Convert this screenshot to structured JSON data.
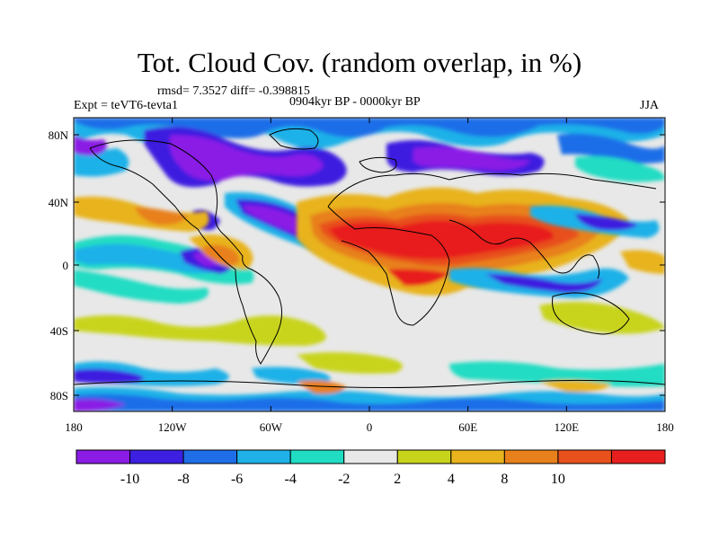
{
  "title": "Tot. Cloud Cov. (random overlap, in %)",
  "stats": "rmsd= 7.3527 diff= -0.398815",
  "experiment": "Expt = teVT6-tevta1",
  "period": "0904kyr BP - 0000kyr BP",
  "season": "JJA",
  "x_ticks": [
    "180",
    "120W",
    "60W",
    "0",
    "60E",
    "120E",
    "180"
  ],
  "y_ticks": [
    "80N",
    "40N",
    "0",
    "40S",
    "80S"
  ],
  "colorbar": {
    "colors": [
      "#8a1ce6",
      "#3c1fe0",
      "#1f6ee8",
      "#1fb1e8",
      "#20dcc3",
      "#e8e8e8",
      "#c8d41c",
      "#e8b31c",
      "#e8801c",
      "#e8501c",
      "#e81f1f"
    ],
    "labels": [
      "-10",
      "-8",
      "-6",
      "-4",
      "-2",
      "2",
      "4",
      "8",
      "10"
    ]
  },
  "colors": {
    "neutral": "#e8e8e8",
    "coast": "#000000"
  }
}
